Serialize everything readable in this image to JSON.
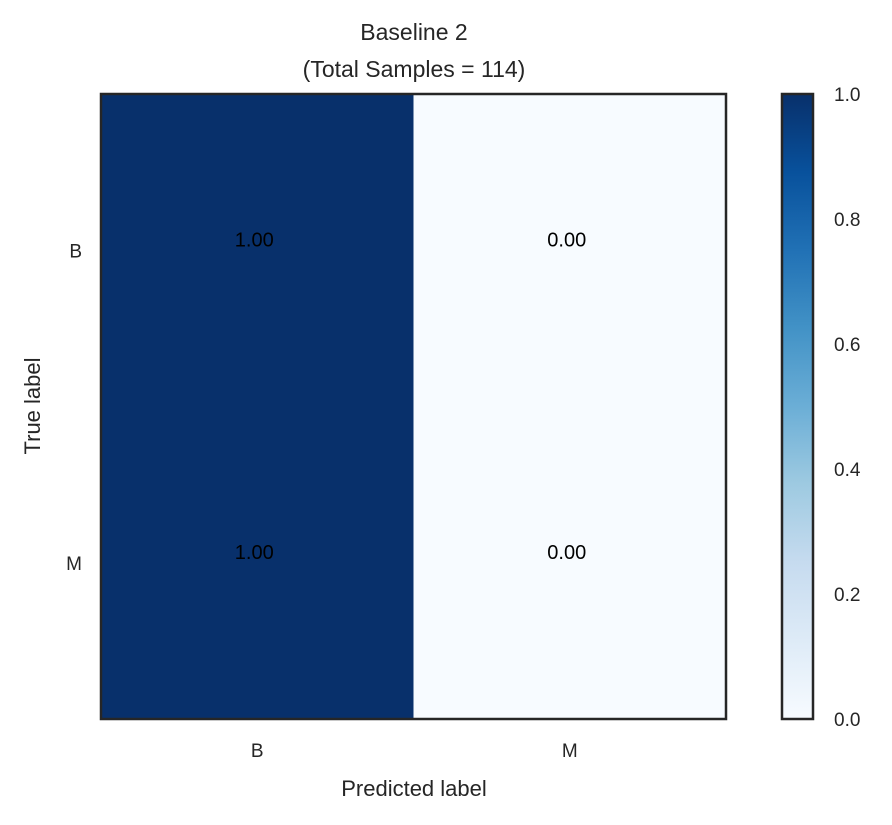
{
  "chart_data": {
    "type": "heatmap",
    "title": "Baseline 2",
    "subtitle": "(Total Samples = 114)",
    "xlabel": "Predicted label",
    "ylabel": "True label",
    "x_categories": [
      "B",
      "M"
    ],
    "y_categories": [
      "B",
      "M"
    ],
    "matrix": [
      [
        1.0,
        0.0
      ],
      [
        1.0,
        0.0
      ]
    ],
    "cell_labels": [
      [
        "1.00",
        "0.00"
      ],
      [
        "1.00",
        "0.00"
      ]
    ],
    "colormap": "Blues",
    "color_low": "#f7fbff",
    "color_high": "#08306b",
    "colorbar": {
      "range": [
        0.0,
        1.0
      ],
      "ticks": [
        "0.0",
        "0.2",
        "0.4",
        "0.6",
        "0.8",
        "1.0"
      ]
    },
    "grid": false
  }
}
